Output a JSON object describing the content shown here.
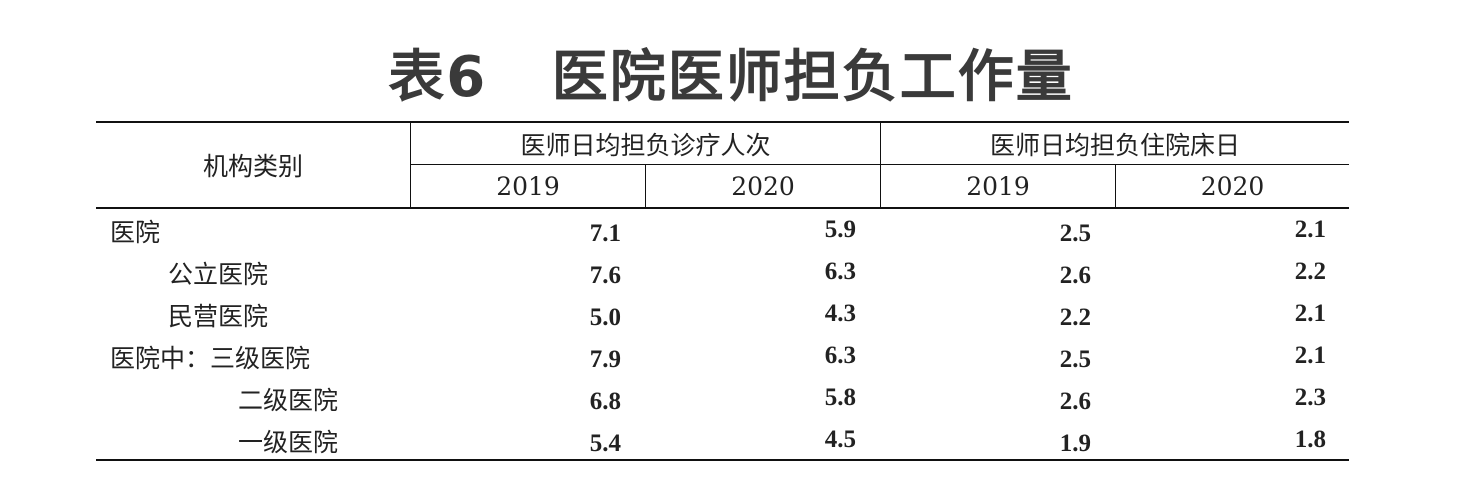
{
  "title": "表6   医院医师担负工作量",
  "table": {
    "row_header": "机构类别",
    "groups": [
      {
        "label": "医师日均担负诊疗人次",
        "years": [
          "2019",
          "2020"
        ]
      },
      {
        "label": "医师日均担负住院床日",
        "years": [
          "2019",
          "2020"
        ]
      }
    ],
    "rows": [
      {
        "label": "医院",
        "visits_2019": "7.1",
        "visits_2020": "5.9",
        "bed_2019": "2.5",
        "bed_2020": "2.1"
      },
      {
        "label": "公立医院",
        "visits_2019": "7.6",
        "visits_2020": "6.3",
        "bed_2019": "2.6",
        "bed_2020": "2.2"
      },
      {
        "label": "民营医院",
        "visits_2019": "5.0",
        "visits_2020": "4.3",
        "bed_2019": "2.2",
        "bed_2020": "2.1"
      },
      {
        "label": "医院中：三级医院",
        "visits_2019": "7.9",
        "visits_2020": "6.3",
        "bed_2019": "2.5",
        "bed_2020": "2.1"
      },
      {
        "label": "二级医院",
        "visits_2019": "6.8",
        "visits_2020": "5.8",
        "bed_2019": "2.6",
        "bed_2020": "2.3"
      },
      {
        "label": "一级医院",
        "visits_2019": "5.4",
        "visits_2020": "4.5",
        "bed_2019": "1.9",
        "bed_2020": "1.8"
      }
    ]
  }
}
